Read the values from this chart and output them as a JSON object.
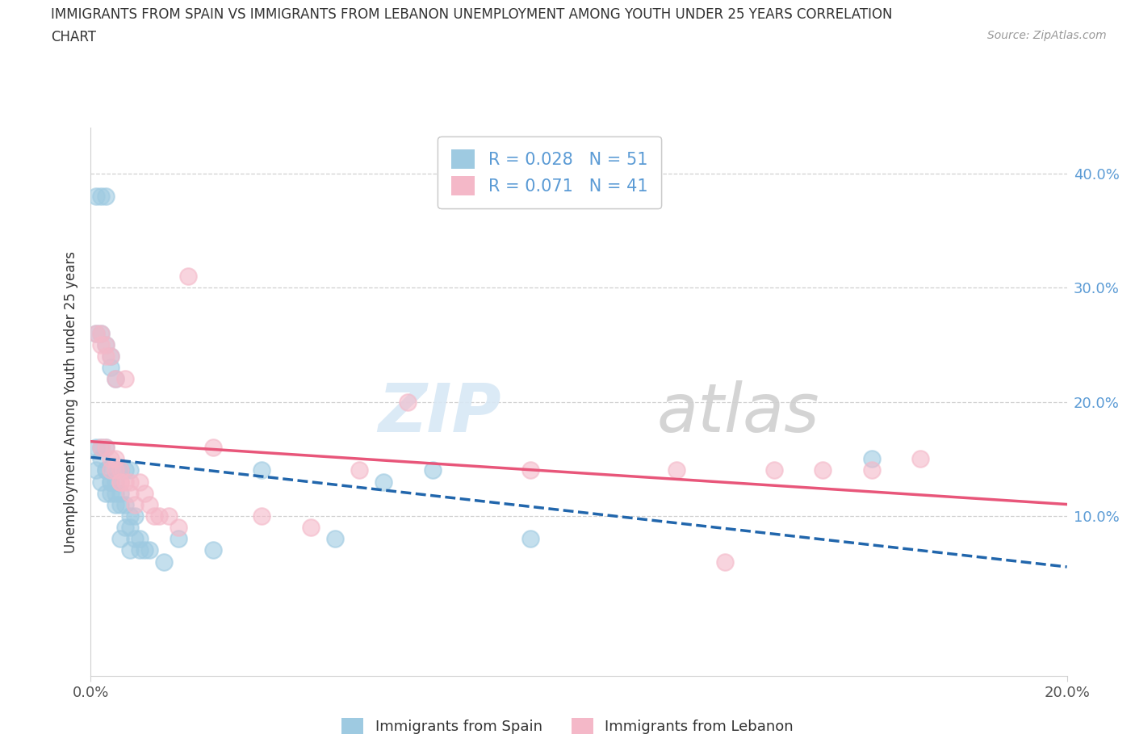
{
  "title_line1": "IMMIGRANTS FROM SPAIN VS IMMIGRANTS FROM LEBANON UNEMPLOYMENT AMONG YOUTH UNDER 25 YEARS CORRELATION",
  "title_line2": "CHART",
  "source": "Source: ZipAtlas.com",
  "ylabel": "Unemployment Among Youth under 25 years",
  "xlim": [
    0.0,
    0.2
  ],
  "ylim": [
    -0.04,
    0.44
  ],
  "x_tick_positions": [
    0.0,
    0.2
  ],
  "x_tick_labels": [
    "0.0%",
    "20.0%"
  ],
  "y_tick_positions": [
    0.0,
    0.1,
    0.2,
    0.3,
    0.4
  ],
  "y_tick_labels_right": [
    "",
    "10.0%",
    "20.0%",
    "30.0%",
    "40.0%"
  ],
  "spain_color": "#9ecae1",
  "lebanon_color": "#f4b8c8",
  "spain_R": 0.028,
  "spain_N": 51,
  "lebanon_R": 0.071,
  "lebanon_N": 41,
  "spain_line_color": "#2166ac",
  "lebanon_line_color": "#e8567a",
  "background_color": "#ffffff",
  "watermark": "ZIPatlas",
  "legend_label_spain": "Immigrants from Spain",
  "legend_label_lebanon": "Immigrants from Lebanon",
  "spain_x": [
    0.001,
    0.002,
    0.003,
    0.001,
    0.002,
    0.003,
    0.004,
    0.005,
    0.001,
    0.002,
    0.003,
    0.004,
    0.001,
    0.002,
    0.003,
    0.002,
    0.003,
    0.004,
    0.005,
    0.003,
    0.004,
    0.005,
    0.006,
    0.004,
    0.005,
    0.006,
    0.007,
    0.008,
    0.005,
    0.006,
    0.007,
    0.008,
    0.009,
    0.006,
    0.007,
    0.008,
    0.009,
    0.01,
    0.008,
    0.01,
    0.011,
    0.012,
    0.015,
    0.018,
    0.025,
    0.035,
    0.05,
    0.06,
    0.07,
    0.09,
    0.16
  ],
  "spain_y": [
    0.38,
    0.38,
    0.38,
    0.26,
    0.26,
    0.25,
    0.24,
    0.22,
    0.16,
    0.16,
    0.16,
    0.23,
    0.14,
    0.15,
    0.14,
    0.13,
    0.14,
    0.13,
    0.13,
    0.12,
    0.12,
    0.12,
    0.12,
    0.13,
    0.14,
    0.14,
    0.14,
    0.14,
    0.11,
    0.11,
    0.11,
    0.1,
    0.1,
    0.08,
    0.09,
    0.09,
    0.08,
    0.08,
    0.07,
    0.07,
    0.07,
    0.07,
    0.06,
    0.08,
    0.07,
    0.14,
    0.08,
    0.13,
    0.14,
    0.08,
    0.15
  ],
  "lebanon_x": [
    0.001,
    0.002,
    0.002,
    0.003,
    0.003,
    0.004,
    0.002,
    0.003,
    0.004,
    0.005,
    0.004,
    0.005,
    0.006,
    0.005,
    0.006,
    0.007,
    0.006,
    0.007,
    0.008,
    0.008,
    0.009,
    0.01,
    0.011,
    0.012,
    0.013,
    0.014,
    0.016,
    0.018,
    0.02,
    0.025,
    0.035,
    0.045,
    0.055,
    0.065,
    0.09,
    0.12,
    0.13,
    0.14,
    0.15,
    0.16,
    0.17
  ],
  "lebanon_y": [
    0.26,
    0.26,
    0.25,
    0.25,
    0.24,
    0.24,
    0.16,
    0.16,
    0.15,
    0.15,
    0.14,
    0.22,
    0.14,
    0.14,
    0.13,
    0.22,
    0.13,
    0.13,
    0.13,
    0.12,
    0.11,
    0.13,
    0.12,
    0.11,
    0.1,
    0.1,
    0.1,
    0.09,
    0.31,
    0.16,
    0.1,
    0.09,
    0.14,
    0.2,
    0.14,
    0.14,
    0.06,
    0.14,
    0.14,
    0.14,
    0.15
  ]
}
